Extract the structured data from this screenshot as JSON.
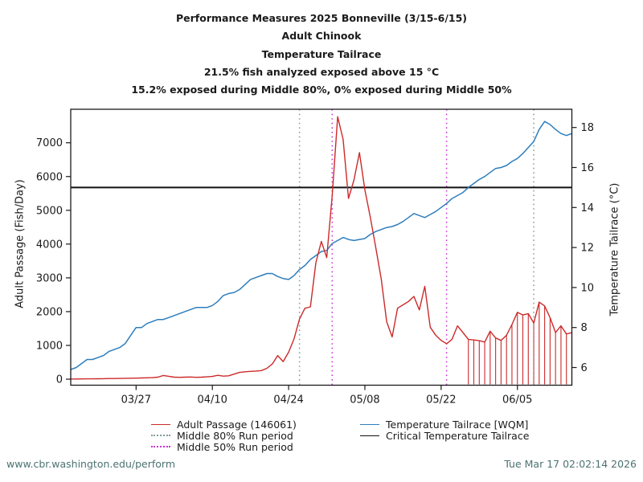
{
  "title_lines": [
    "Performance Measures 2025 Bonneville (3/15-6/15)",
    "Adult Chinook",
    "Temperature Tailrace",
    "21.5% fish analyzed exposed above 15 °C",
    "15.2% exposed during Middle 80%, 0% exposed during Middle 50%"
  ],
  "footer": {
    "url": "www.cbr.washington.edu/perform",
    "timestamp": "Tue Mar 17 02:02:14 2026"
  },
  "colors": {
    "passage": "#cc2a2a",
    "temperature": "#2e7ebc",
    "critical": "#111111",
    "middle80": "#849c9c",
    "middle50": "#c832d2",
    "footer_text": "#4d7272",
    "axis_text": "#1a1a1a"
  },
  "legend": [
    {
      "label": "Adult Passage (146061)",
      "style": "solid",
      "color_key": "passage"
    },
    {
      "label": "Middle 80% Run period",
      "style": "dotted",
      "color_key": "middle80"
    },
    {
      "label": "Middle 50% Run period",
      "style": "dotted",
      "color_key": "middle50"
    },
    {
      "label": "Temperature Tailrace [WQM]",
      "style": "solid",
      "color_key": "temperature"
    },
    {
      "label": "Critical Temperature Tailrace",
      "style": "solid",
      "color_key": "critical"
    }
  ],
  "chart_data": {
    "type": "line",
    "title": "Performance Measures 2025 Bonneville (3/15-6/15)",
    "xlabel": "",
    "ylabel_left": "Adult Passage (Fish/Day)",
    "ylabel_right": "Temperature Tailrace (°C)",
    "ylim_left": [
      0,
      8000
    ],
    "ylim_right": [
      5,
      18.6
    ],
    "y_left_ticks": [
      0,
      1000,
      2000,
      3000,
      4000,
      5000,
      6000,
      7000
    ],
    "y_right_ticks": [
      6,
      8,
      10,
      12,
      14,
      16,
      18
    ],
    "x_tick_indices": [
      12,
      26,
      40,
      54,
      68,
      82
    ],
    "x_tick_labels": [
      "03/27",
      "04/10",
      "04/24",
      "05/08",
      "05/22",
      "06/05"
    ],
    "grid": false,
    "legend_position": "bottom",
    "critical_temperature": 15,
    "middle80_dates": [
      "04/26",
      "06/08"
    ],
    "middle80_indices": [
      42,
      85
    ],
    "middle50_dates": [
      "05/02",
      "05/23"
    ],
    "middle50_indices": [
      48,
      69
    ],
    "exposure_start_date": "05/27",
    "exposure_start_index": 73,
    "x": [
      "03/15",
      "03/16",
      "03/17",
      "03/18",
      "03/19",
      "03/20",
      "03/21",
      "03/22",
      "03/23",
      "03/24",
      "03/25",
      "03/26",
      "03/27",
      "03/28",
      "03/29",
      "03/30",
      "03/31",
      "04/01",
      "04/02",
      "04/03",
      "04/04",
      "04/05",
      "04/06",
      "04/07",
      "04/08",
      "04/09",
      "04/10",
      "04/11",
      "04/12",
      "04/13",
      "04/14",
      "04/15",
      "04/16",
      "04/17",
      "04/18",
      "04/19",
      "04/20",
      "04/21",
      "04/22",
      "04/23",
      "04/24",
      "04/25",
      "04/26",
      "04/27",
      "04/28",
      "04/29",
      "04/30",
      "05/01",
      "05/02",
      "05/03",
      "05/04",
      "05/05",
      "05/06",
      "05/07",
      "05/08",
      "05/09",
      "05/10",
      "05/11",
      "05/12",
      "05/13",
      "05/14",
      "05/15",
      "05/16",
      "05/17",
      "05/18",
      "05/19",
      "05/20",
      "05/21",
      "05/22",
      "05/23",
      "05/24",
      "05/25",
      "05/26",
      "05/27",
      "05/28",
      "05/29",
      "05/30",
      "05/31",
      "06/01",
      "06/02",
      "06/03",
      "06/04",
      "06/05",
      "06/06",
      "06/07",
      "06/08",
      "06/09",
      "06/10",
      "06/11",
      "06/12",
      "06/13",
      "06/14",
      "06/15"
    ],
    "series": [
      {
        "name": "Adult Passage (146061)",
        "axis": "left",
        "values": [
          5,
          5,
          8,
          10,
          10,
          12,
          15,
          18,
          20,
          22,
          25,
          28,
          30,
          35,
          40,
          45,
          60,
          110,
          85,
          60,
          55,
          60,
          65,
          55,
          60,
          70,
          80,
          115,
          90,
          100,
          150,
          200,
          220,
          230,
          240,
          255,
          320,
          450,
          700,
          520,
          800,
          1200,
          1780,
          2100,
          2140,
          3450,
          4080,
          3600,
          5430,
          7770,
          7100,
          5350,
          5900,
          6710,
          5600,
          4800,
          3900,
          2970,
          1700,
          1250,
          2100,
          2200,
          2300,
          2450,
          2050,
          2750,
          1540,
          1300,
          1150,
          1050,
          1180,
          1580,
          1380,
          1180,
          1160,
          1140,
          1100,
          1420,
          1220,
          1150,
          1300,
          1620,
          1980,
          1900,
          1940,
          1660,
          2280,
          2170,
          1820,
          1380,
          1580,
          1340,
          1380
        ]
      },
      {
        "name": "Temperature Tailrace [WQM]",
        "axis": "right",
        "values": [
          5.9,
          6.0,
          6.2,
          6.4,
          6.4,
          6.5,
          6.6,
          6.8,
          6.9,
          7.0,
          7.2,
          7.6,
          8.0,
          8.0,
          8.2,
          8.3,
          8.4,
          8.4,
          8.5,
          8.6,
          8.7,
          8.8,
          8.9,
          9.0,
          9.0,
          9.0,
          9.1,
          9.3,
          9.6,
          9.7,
          9.75,
          9.9,
          10.15,
          10.4,
          10.5,
          10.6,
          10.7,
          10.7,
          10.55,
          10.45,
          10.4,
          10.6,
          10.9,
          11.1,
          11.4,
          11.6,
          11.8,
          11.85,
          12.2,
          12.35,
          12.5,
          12.4,
          12.35,
          12.4,
          12.45,
          12.65,
          12.8,
          12.9,
          13.0,
          13.05,
          13.15,
          13.3,
          13.5,
          13.7,
          13.6,
          13.5,
          13.65,
          13.8,
          14.0,
          14.2,
          14.45,
          14.6,
          14.75,
          15.0,
          15.2,
          15.4,
          15.55,
          15.75,
          15.95,
          16.0,
          16.1,
          16.3,
          16.45,
          16.7,
          17.0,
          17.3,
          17.9,
          18.3,
          18.15,
          17.9,
          17.7,
          17.6,
          17.7
        ]
      }
    ]
  }
}
